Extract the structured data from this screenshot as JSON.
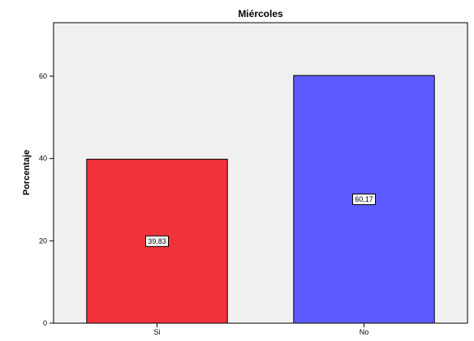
{
  "chart_data": {
    "type": "bar",
    "title": "Miércoles",
    "xlabel": "",
    "ylabel": "Porcentaje",
    "categories": [
      "Si",
      "No"
    ],
    "values": [
      39.83,
      60.17
    ],
    "data_labels": [
      "39,83",
      "60,17"
    ],
    "bar_colors": [
      "#f0333a",
      "#5b5bff"
    ],
    "ylim": [
      0,
      73
    ],
    "yticks": [
      0,
      20,
      40,
      60
    ],
    "ytick_labels": [
      "0",
      "20",
      "40",
      "60"
    ],
    "plot_background": "#f0f0f0",
    "grid": false,
    "legend": "none"
  }
}
